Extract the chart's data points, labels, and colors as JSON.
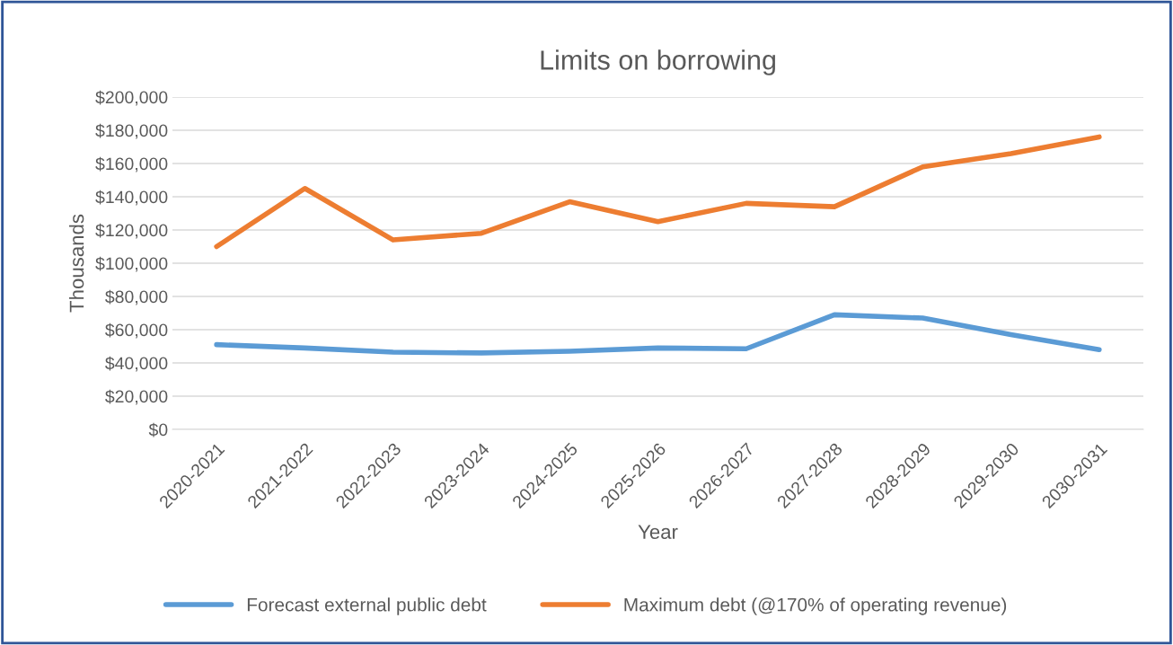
{
  "chart_data": {
    "type": "line",
    "title": "Limits on borrowing",
    "xlabel": "Year",
    "ylabel": "Thousands",
    "categories": [
      "2020-2021",
      "2021-2022",
      "2022-2023",
      "2023-2024",
      "2024-2025",
      "2025-2026",
      "2026-2027",
      "2027-2028",
      "2028-2029",
      "2029-2030",
      "2030-2031"
    ],
    "series": [
      {
        "name": "Forecast external public debt",
        "color": "#5b9bd5",
        "values": [
          51000,
          49000,
          46500,
          46000,
          47000,
          49000,
          48500,
          69000,
          67000,
          57000,
          48000
        ]
      },
      {
        "name": "Maximum debt (@170% of operating revenue)",
        "color": "#ed7d31",
        "values": [
          110000,
          145000,
          114000,
          118000,
          137000,
          125000,
          136000,
          134000,
          158000,
          166000,
          176000
        ]
      }
    ],
    "ylim": [
      0,
      200000
    ],
    "yticks": [
      {
        "value": 0,
        "label": "$0"
      },
      {
        "value": 20000,
        "label": "$20,000"
      },
      {
        "value": 40000,
        "label": "$40,000"
      },
      {
        "value": 60000,
        "label": "$60,000"
      },
      {
        "value": 80000,
        "label": "$80,000"
      },
      {
        "value": 100000,
        "label": "$100,000"
      },
      {
        "value": 120000,
        "label": "$120,000"
      },
      {
        "value": 140000,
        "label": "$140,000"
      },
      {
        "value": 160000,
        "label": "$160,000"
      },
      {
        "value": 180000,
        "label": "$180,000"
      },
      {
        "value": 200000,
        "label": "$200,000"
      }
    ],
    "grid": "y",
    "legend": "bottom",
    "marker": "none",
    "line_style": "solid"
  }
}
